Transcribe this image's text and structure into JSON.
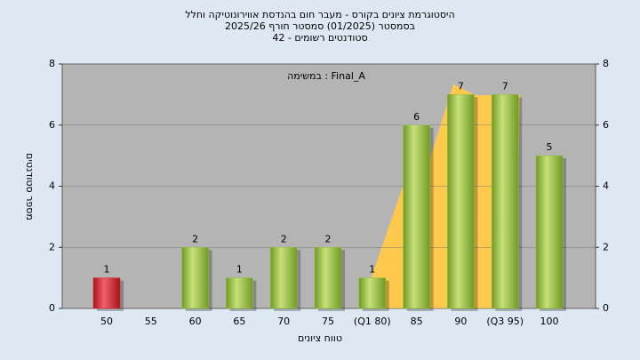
{
  "chart_data": {
    "type": "bar",
    "title": "היסטוגרמת ציונים בקורס - מעבר חום בהנדסת אווירונוטיקה וחלל",
    "subtitle": "בסמסטר  (01/2025)  סמסטר חורף 2025/26",
    "subtitle2": "סטודנטים רשומים - 42",
    "annotation": "במשימה : Final_A",
    "x_label": "טווח ציונים",
    "y_label": "מספר סטודנטים",
    "categories": [
      "50",
      "55",
      "60",
      "65",
      "70",
      "75",
      "(Q1 80)",
      "85",
      "90",
      "(Q3 95)",
      "100"
    ],
    "values": [
      1,
      0,
      2,
      1,
      2,
      2,
      1,
      6,
      7,
      7,
      5
    ],
    "value_labels": [
      "1",
      null,
      "2",
      "1",
      "2",
      "2",
      "1",
      "6",
      "7",
      "7",
      "5"
    ],
    "colors": [
      "#d9262b",
      "#8fbf3a",
      "#8fbf3a",
      "#8fbf3a",
      "#8fbf3a",
      "#8fbf3a",
      "#8fbf3a",
      "#8fbf3a",
      "#8fbf3a",
      "#8fbf3a",
      "#8fbf3a"
    ],
    "ylim": [
      0,
      8
    ],
    "yticks": [
      0,
      2,
      4,
      6,
      8
    ],
    "grid": true
  }
}
